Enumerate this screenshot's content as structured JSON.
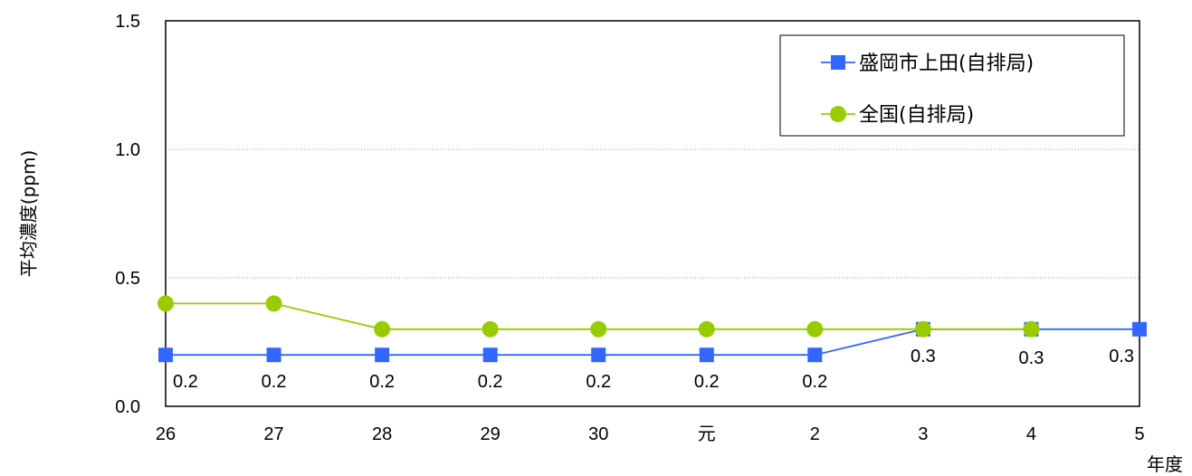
{
  "chart_data": {
    "type": "line",
    "categories": [
      "26",
      "27",
      "28",
      "29",
      "30",
      "元",
      "2",
      "3",
      "4",
      "5"
    ],
    "series": [
      {
        "name": "盛岡市上田(自排局)",
        "values": [
          0.2,
          0.2,
          0.2,
          0.2,
          0.2,
          0.2,
          0.2,
          0.3,
          0.3,
          0.3
        ],
        "data_labels": [
          "0.2",
          "0.2",
          "0.2",
          "0.2",
          "0.2",
          "0.2",
          "0.2",
          "0.3",
          "0.3",
          "0.3"
        ],
        "color": "#3366ff",
        "marker": "square"
      },
      {
        "name": "全国(自排局)",
        "values": [
          0.4,
          0.4,
          0.3,
          0.3,
          0.3,
          0.3,
          0.3,
          0.3,
          0.3,
          null
        ],
        "color": "#99cc00",
        "marker": "circle"
      }
    ],
    "xlabel": "年度",
    "ylabel": "平均濃度(ppm)",
    "ylim": [
      0,
      1.5
    ],
    "yticks": [
      "0.0",
      "0.5",
      "1.0",
      "1.5"
    ],
    "ytick_values": [
      0,
      0.5,
      1.0,
      1.5
    ],
    "grid": true,
    "legend_position": "top-right"
  }
}
